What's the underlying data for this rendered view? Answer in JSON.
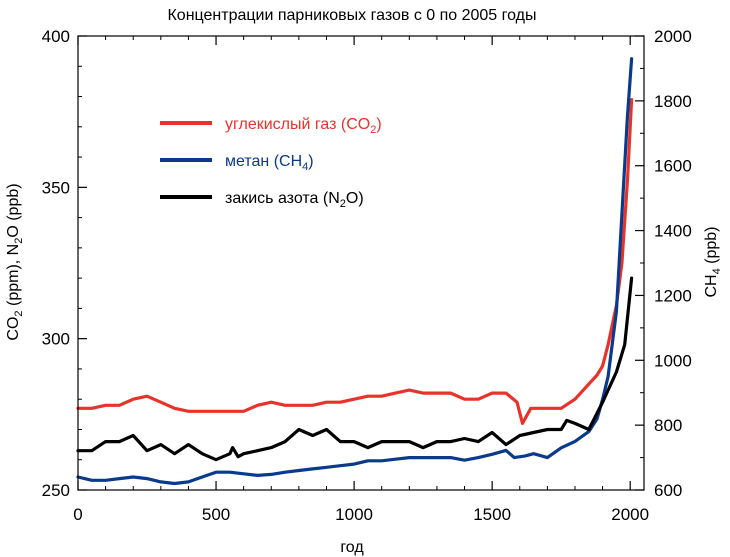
{
  "chart_data": {
    "type": "line",
    "title": "Концентрации парниковых газов с 0 по 2005 годы",
    "xlabel": "год",
    "ylabel_left": [
      "CO",
      "2",
      " (ppm),  N",
      "2",
      "O (ppb)"
    ],
    "ylabel_right": [
      "CH",
      "4",
      " (ppb)"
    ],
    "xlim": [
      0,
      2050
    ],
    "ylim_left": [
      250,
      400
    ],
    "ylim_right": [
      600,
      2000
    ],
    "x_ticks": [
      0,
      500,
      1000,
      1500,
      2000
    ],
    "y_ticks_left": [
      250,
      300,
      350,
      400
    ],
    "y_ticks_right": [
      600,
      800,
      1000,
      1200,
      1400,
      1600,
      1800,
      2000
    ],
    "grid": false,
    "legend_position": "upper-left",
    "colors": {
      "co2": "#e8322a",
      "ch4": "#0a3a8c",
      "n2o": "#000000"
    },
    "series": [
      {
        "key": "co2",
        "axis": "left",
        "name": [
          "углекислый газ (CO",
          "2",
          ")"
        ],
        "points": [
          [
            0,
            277
          ],
          [
            50,
            277
          ],
          [
            100,
            278
          ],
          [
            150,
            278
          ],
          [
            200,
            280
          ],
          [
            250,
            281
          ],
          [
            300,
            279
          ],
          [
            350,
            277
          ],
          [
            400,
            276
          ],
          [
            450,
            276
          ],
          [
            500,
            276
          ],
          [
            550,
            276
          ],
          [
            600,
            276
          ],
          [
            650,
            278
          ],
          [
            700,
            279
          ],
          [
            750,
            278
          ],
          [
            800,
            278
          ],
          [
            850,
            278
          ],
          [
            900,
            279
          ],
          [
            950,
            279
          ],
          [
            1000,
            280
          ],
          [
            1050,
            281
          ],
          [
            1100,
            281
          ],
          [
            1150,
            282
          ],
          [
            1200,
            283
          ],
          [
            1250,
            282
          ],
          [
            1300,
            282
          ],
          [
            1350,
            282
          ],
          [
            1400,
            280
          ],
          [
            1450,
            280
          ],
          [
            1500,
            282
          ],
          [
            1550,
            282
          ],
          [
            1590,
            279
          ],
          [
            1610,
            272
          ],
          [
            1640,
            277
          ],
          [
            1700,
            277
          ],
          [
            1750,
            277
          ],
          [
            1800,
            280
          ],
          [
            1850,
            285
          ],
          [
            1880,
            288
          ],
          [
            1900,
            291
          ],
          [
            1920,
            298
          ],
          [
            1950,
            311
          ],
          [
            1970,
            325
          ],
          [
            1990,
            352
          ],
          [
            2005,
            379
          ]
        ]
      },
      {
        "key": "ch4",
        "axis": "right",
        "name": [
          "метан (CH",
          "4",
          ")"
        ],
        "points": [
          [
            0,
            640
          ],
          [
            50,
            630
          ],
          [
            100,
            630
          ],
          [
            150,
            635
          ],
          [
            200,
            640
          ],
          [
            250,
            635
          ],
          [
            300,
            625
          ],
          [
            350,
            620
          ],
          [
            400,
            625
          ],
          [
            450,
            640
          ],
          [
            500,
            655
          ],
          [
            550,
            655
          ],
          [
            600,
            650
          ],
          [
            650,
            645
          ],
          [
            700,
            648
          ],
          [
            750,
            655
          ],
          [
            800,
            660
          ],
          [
            850,
            665
          ],
          [
            900,
            670
          ],
          [
            950,
            675
          ],
          [
            1000,
            680
          ],
          [
            1050,
            690
          ],
          [
            1100,
            690
          ],
          [
            1150,
            695
          ],
          [
            1200,
            700
          ],
          [
            1250,
            700
          ],
          [
            1300,
            700
          ],
          [
            1350,
            700
          ],
          [
            1400,
            692
          ],
          [
            1450,
            700
          ],
          [
            1500,
            710
          ],
          [
            1550,
            722
          ],
          [
            1580,
            700
          ],
          [
            1620,
            705
          ],
          [
            1650,
            712
          ],
          [
            1700,
            700
          ],
          [
            1750,
            730
          ],
          [
            1800,
            750
          ],
          [
            1850,
            780
          ],
          [
            1880,
            820
          ],
          [
            1900,
            880
          ],
          [
            1920,
            950
          ],
          [
            1950,
            1150
          ],
          [
            1970,
            1450
          ],
          [
            1990,
            1750
          ],
          [
            2005,
            1930
          ]
        ]
      },
      {
        "key": "n2o",
        "axis": "left",
        "name": [
          "закись азота (N",
          "2",
          "O)"
        ],
        "points": [
          [
            0,
            263
          ],
          [
            50,
            263
          ],
          [
            100,
            266
          ],
          [
            150,
            266
          ],
          [
            200,
            268
          ],
          [
            250,
            263
          ],
          [
            300,
            265
          ],
          [
            350,
            262
          ],
          [
            400,
            265
          ],
          [
            450,
            262
          ],
          [
            500,
            260
          ],
          [
            550,
            262
          ],
          [
            560,
            264
          ],
          [
            580,
            261
          ],
          [
            600,
            262
          ],
          [
            650,
            263
          ],
          [
            700,
            264
          ],
          [
            750,
            266
          ],
          [
            800,
            270
          ],
          [
            850,
            268
          ],
          [
            900,
            270
          ],
          [
            950,
            266
          ],
          [
            1000,
            266
          ],
          [
            1050,
            264
          ],
          [
            1100,
            266
          ],
          [
            1150,
            266
          ],
          [
            1200,
            266
          ],
          [
            1250,
            264
          ],
          [
            1300,
            266
          ],
          [
            1350,
            266
          ],
          [
            1400,
            267
          ],
          [
            1450,
            266
          ],
          [
            1500,
            269
          ],
          [
            1550,
            265
          ],
          [
            1600,
            268
          ],
          [
            1650,
            269
          ],
          [
            1700,
            270
          ],
          [
            1750,
            270
          ],
          [
            1770,
            273
          ],
          [
            1800,
            272
          ],
          [
            1850,
            270
          ],
          [
            1900,
            279
          ],
          [
            1920,
            283
          ],
          [
            1950,
            289
          ],
          [
            1980,
            298
          ],
          [
            2005,
            320
          ]
        ]
      }
    ]
  }
}
